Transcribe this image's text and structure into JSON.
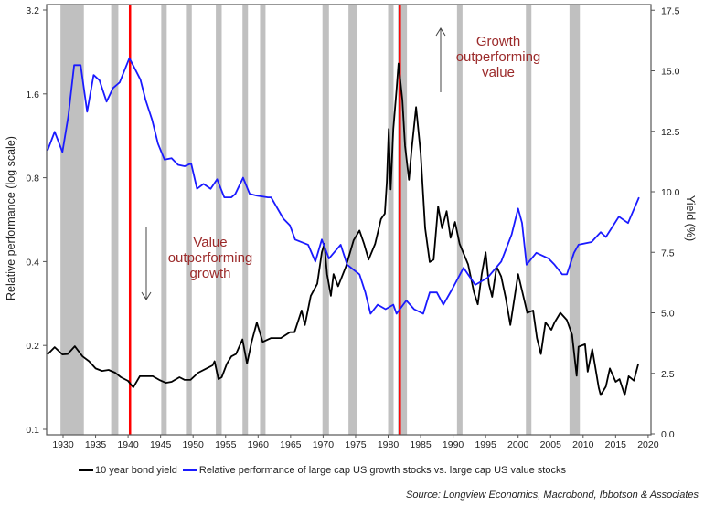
{
  "chart_data": {
    "type": "line",
    "title": "",
    "xlabel": "",
    "ylabel_left": "Relative performance (log scale)",
    "ylabel_right": "Yield (%)",
    "x_ticks": [
      "1930",
      "1935",
      "1940",
      "1945",
      "1950",
      "1955",
      "1960",
      "1965",
      "1970",
      "1975",
      "1980",
      "1985",
      "1990",
      "1995",
      "2000",
      "2005",
      "2010",
      "2015",
      "2020"
    ],
    "y_left_ticks": [
      "3.2",
      "1.6",
      "0.8",
      "0.4",
      "0.2",
      "0.1"
    ],
    "y_left_scale": "log",
    "y_left_range": [
      0.1,
      3.2
    ],
    "y_right_ticks": [
      "17.5",
      "15.0",
      "12.5",
      "10.0",
      "7.5",
      "5.0",
      "2.5",
      "0.0"
    ],
    "y_right_range": [
      0,
      17.5
    ],
    "x_range": [
      1927.5,
      2020.4
    ],
    "series": [
      {
        "name": "10 year bond yield",
        "axis": "right",
        "color": "#000000",
        "points": [
          [
            1927.6,
            3.28
          ],
          [
            1928.7,
            3.58
          ],
          [
            1929.9,
            3.28
          ],
          [
            1930.7,
            3.3
          ],
          [
            1931.8,
            3.62
          ],
          [
            1933,
            3.2
          ],
          [
            1934,
            3.0
          ],
          [
            1935,
            2.7
          ],
          [
            1936,
            2.6
          ],
          [
            1937,
            2.64
          ],
          [
            1938,
            2.53
          ],
          [
            1938.9,
            2.34
          ],
          [
            1940,
            2.19
          ],
          [
            1940.8,
            1.92
          ],
          [
            1941.8,
            2.38
          ],
          [
            1942.8,
            2.38
          ],
          [
            1943.8,
            2.38
          ],
          [
            1944.8,
            2.23
          ],
          [
            1945.8,
            2.11
          ],
          [
            1946.7,
            2.15
          ],
          [
            1947.9,
            2.34
          ],
          [
            1948.7,
            2.23
          ],
          [
            1949.6,
            2.23
          ],
          [
            1950.8,
            2.53
          ],
          [
            1952.2,
            2.72
          ],
          [
            1953,
            2.83
          ],
          [
            1953.3,
            3.0
          ],
          [
            1953.9,
            2.26
          ],
          [
            1954.4,
            2.34
          ],
          [
            1955.2,
            2.9
          ],
          [
            1955.9,
            3.2
          ],
          [
            1956.6,
            3.3
          ],
          [
            1957.6,
            3.9
          ],
          [
            1958.3,
            2.9
          ],
          [
            1959,
            3.8
          ],
          [
            1959.8,
            4.6
          ],
          [
            1960.7,
            3.8
          ],
          [
            1962,
            3.96
          ],
          [
            1963.5,
            3.96
          ],
          [
            1964.9,
            4.2
          ],
          [
            1965.6,
            4.2
          ],
          [
            1966.7,
            5.1
          ],
          [
            1967.2,
            4.5
          ],
          [
            1968.1,
            5.7
          ],
          [
            1969.1,
            6.2
          ],
          [
            1969.8,
            7.5
          ],
          [
            1970.2,
            7.85
          ],
          [
            1970.6,
            6.6
          ],
          [
            1971.2,
            5.7
          ],
          [
            1971.6,
            6.6
          ],
          [
            1972.3,
            6.1
          ],
          [
            1973.5,
            6.9
          ],
          [
            1974.7,
            8.0
          ],
          [
            1975.6,
            8.4
          ],
          [
            1976.3,
            7.85
          ],
          [
            1977,
            7.2
          ],
          [
            1978,
            7.85
          ],
          [
            1978.9,
            8.87
          ],
          [
            1979.5,
            9.1
          ],
          [
            1979.8,
            10.4
          ],
          [
            1980.1,
            12.6
          ],
          [
            1980.4,
            10.1
          ],
          [
            1980.8,
            12.6
          ],
          [
            1981.3,
            14.2
          ],
          [
            1981.6,
            15.3
          ],
          [
            1982.2,
            13.8
          ],
          [
            1982.6,
            11.9
          ],
          [
            1983.2,
            10.5
          ],
          [
            1983.6,
            11.7
          ],
          [
            1984.3,
            13.5
          ],
          [
            1985,
            11.6
          ],
          [
            1985.7,
            8.5
          ],
          [
            1986.4,
            7.1
          ],
          [
            1987,
            7.2
          ],
          [
            1987.7,
            9.4
          ],
          [
            1988.3,
            8.5
          ],
          [
            1989,
            9.2
          ],
          [
            1989.6,
            8.1
          ],
          [
            1990.3,
            8.75
          ],
          [
            1991,
            7.85
          ],
          [
            1992.3,
            7.0
          ],
          [
            1993.2,
            5.85
          ],
          [
            1993.8,
            5.35
          ],
          [
            1994.4,
            6.6
          ],
          [
            1995,
            7.5
          ],
          [
            1995.5,
            6.2
          ],
          [
            1996,
            5.66
          ],
          [
            1996.7,
            6.9
          ],
          [
            1997.4,
            6.5
          ],
          [
            1998.1,
            5.6
          ],
          [
            1998.8,
            4.5
          ],
          [
            2000,
            6.6
          ],
          [
            2001.4,
            5.0
          ],
          [
            2002.3,
            5.1
          ],
          [
            2002.9,
            3.96
          ],
          [
            2003.5,
            3.3
          ],
          [
            2004.2,
            4.6
          ],
          [
            2005.1,
            4.3
          ],
          [
            2005.6,
            4.6
          ],
          [
            2006.5,
            5.0
          ],
          [
            2007.5,
            4.7
          ],
          [
            2008.3,
            4.1
          ],
          [
            2009,
            2.4
          ],
          [
            2009.3,
            3.6
          ],
          [
            2010.3,
            3.7
          ],
          [
            2010.7,
            2.57
          ],
          [
            2011.4,
            3.5
          ],
          [
            2012.4,
            1.9
          ],
          [
            2012.7,
            1.6
          ],
          [
            2013.5,
            1.96
          ],
          [
            2014.1,
            2.7
          ],
          [
            2015,
            2.15
          ],
          [
            2015.6,
            2.26
          ],
          [
            2016.4,
            1.6
          ],
          [
            2017,
            2.38
          ],
          [
            2017.8,
            2.2
          ],
          [
            2018.5,
            2.9
          ]
        ]
      },
      {
        "name": "Relative performance of large cap US growth stocks vs. large cap US value stocks",
        "axis": "left",
        "color": "#1a1aff",
        "points": [
          [
            1927.6,
            1.0
          ],
          [
            1928.7,
            1.17
          ],
          [
            1929.9,
            0.99
          ],
          [
            1930.8,
            1.33
          ],
          [
            1931.7,
            2.03
          ],
          [
            1932.7,
            2.03
          ],
          [
            1933.7,
            1.38
          ],
          [
            1934.7,
            1.87
          ],
          [
            1935.6,
            1.79
          ],
          [
            1936.7,
            1.5
          ],
          [
            1937.7,
            1.68
          ],
          [
            1938.7,
            1.76
          ],
          [
            1940.2,
            2.15
          ],
          [
            1941,
            1.98
          ],
          [
            1941.9,
            1.8
          ],
          [
            1942.7,
            1.52
          ],
          [
            1943.7,
            1.29
          ],
          [
            1944.6,
            1.06
          ],
          [
            1945.6,
            0.93
          ],
          [
            1946.7,
            0.94
          ],
          [
            1947.7,
            0.89
          ],
          [
            1948.7,
            0.88
          ],
          [
            1949.7,
            0.9
          ],
          [
            1950.6,
            0.73
          ],
          [
            1951.6,
            0.76
          ],
          [
            1952.7,
            0.73
          ],
          [
            1953.7,
            0.79
          ],
          [
            1954.8,
            0.68
          ],
          [
            1955.9,
            0.68
          ],
          [
            1956.5,
            0.7
          ],
          [
            1957.7,
            0.8
          ],
          [
            1958.7,
            0.7
          ],
          [
            1959.8,
            0.69
          ],
          [
            1961.5,
            0.68
          ],
          [
            1962,
            0.68
          ],
          [
            1963.9,
            0.57
          ],
          [
            1964.9,
            0.54
          ],
          [
            1965.7,
            0.48
          ],
          [
            1967.7,
            0.46
          ],
          [
            1968.8,
            0.4
          ],
          [
            1969.8,
            0.48
          ],
          [
            1970.9,
            0.41
          ],
          [
            1972.7,
            0.46
          ],
          [
            1973.7,
            0.39
          ],
          [
            1975.6,
            0.36
          ],
          [
            1976.5,
            0.31
          ],
          [
            1977.3,
            0.26
          ],
          [
            1978.4,
            0.28
          ],
          [
            1979.6,
            0.27
          ],
          [
            1980.8,
            0.28
          ],
          [
            1981.3,
            0.26
          ],
          [
            1982.8,
            0.29
          ],
          [
            1984,
            0.27
          ],
          [
            1985.4,
            0.26
          ],
          [
            1986.4,
            0.31
          ],
          [
            1987.5,
            0.31
          ],
          [
            1988.5,
            0.28
          ],
          [
            1989.9,
            0.32
          ],
          [
            1991.6,
            0.38
          ],
          [
            1993.4,
            0.33
          ],
          [
            1995.3,
            0.35
          ],
          [
            1997.4,
            0.4
          ],
          [
            1999,
            0.5
          ],
          [
            2000,
            0.62
          ],
          [
            2000.6,
            0.55
          ],
          [
            2001.3,
            0.39
          ],
          [
            2002.8,
            0.43
          ],
          [
            2004.7,
            0.41
          ],
          [
            2005.6,
            0.39
          ],
          [
            2006.8,
            0.36
          ],
          [
            2007.5,
            0.36
          ],
          [
            2008.6,
            0.43
          ],
          [
            2009.3,
            0.46
          ],
          [
            2011.3,
            0.47
          ],
          [
            2012.7,
            0.51
          ],
          [
            2013.5,
            0.49
          ],
          [
            2015.5,
            0.58
          ],
          [
            2016.9,
            0.55
          ],
          [
            2017.6,
            0.6
          ],
          [
            2018.6,
            0.68
          ]
        ]
      }
    ],
    "recession_bands": [
      [
        1929.6,
        1933.2
      ],
      [
        1937.4,
        1938.5
      ],
      [
        1945.1,
        1945.8
      ],
      [
        1948.9,
        1949.8
      ],
      [
        1953.5,
        1954.4
      ],
      [
        1957.6,
        1958.3
      ],
      [
        1960.3,
        1961.1
      ],
      [
        1969.9,
        1970.9
      ],
      [
        1973.9,
        1975.2
      ],
      [
        1980,
        1980.5
      ],
      [
        1981.5,
        1982.9
      ],
      [
        1990.6,
        1991.2
      ],
      [
        2001.2,
        2001.9
      ],
      [
        2007.9,
        2009.5
      ]
    ],
    "reference_lines": [
      1940.3,
      1981.8
    ],
    "reference_line_color": "#ff0000",
    "band_color": "#c0c0c0",
    "annotations": {
      "value": [
        "Value",
        "outperforming",
        "growth"
      ],
      "growth": [
        "Growth",
        "outperforming",
        "value"
      ]
    },
    "legend": {
      "placement": "bottom",
      "items": [
        "10 year bond yield",
        "Relative performance of large cap US growth stocks vs. large cap US value stocks"
      ]
    },
    "source": "Source: Longview Economics, Macrobond, Ibbotson & Associates"
  }
}
